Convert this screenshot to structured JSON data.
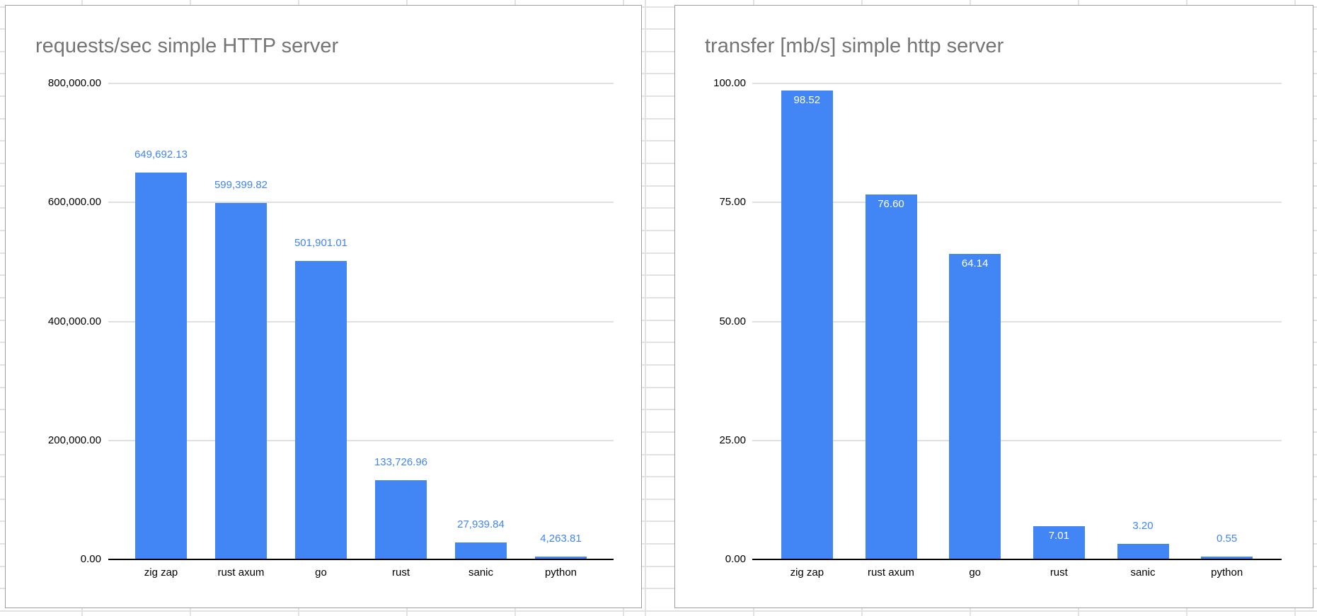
{
  "app": {
    "description": "spreadsheet with two embedded bar charts"
  },
  "colors": {
    "bar": "#4285f4",
    "data_label": "#4285f4",
    "data_label_inside": "#ffffff",
    "title": "#757575",
    "axis_text": "#000000",
    "chart_gridline": "#e0e0e0",
    "axis_baseline": "#000000",
    "chart_border": "#9e9e9e",
    "sheet_gridline": "#e2e2e2",
    "chart_background": "#ffffff"
  },
  "chart_data": [
    {
      "type": "bar",
      "title": "requests/sec simple HTTP server",
      "categories": [
        "zig zap",
        "rust axum",
        "go",
        "rust",
        "sanic",
        "python"
      ],
      "values": [
        649692.13,
        599399.82,
        501901.01,
        133726.96,
        27939.84,
        4263.81
      ],
      "value_labels": [
        "649,692.13",
        "599,399.82",
        "501,901.01",
        "133,726.96",
        "27,939.84",
        "4,263.81"
      ],
      "label_placement": [
        "above",
        "above",
        "above",
        "above",
        "above",
        "above"
      ],
      "ylim": [
        0,
        800000
      ],
      "y_ticks": [
        {
          "value": 800000,
          "label": "800,000.00"
        },
        {
          "value": 600000,
          "label": "600,000.00"
        },
        {
          "value": 400000,
          "label": "400,000.00"
        },
        {
          "value": 200000,
          "label": "200,000.00"
        },
        {
          "value": 0,
          "label": "0.00"
        }
      ],
      "xlabel": "",
      "ylabel": "",
      "grid": true,
      "legend": "none"
    },
    {
      "type": "bar",
      "title": "transfer [mb/s] simple http server",
      "categories": [
        "zig zap",
        "rust axum",
        "go",
        "rust",
        "sanic",
        "python"
      ],
      "values": [
        98.52,
        76.6,
        64.14,
        7.01,
        3.2,
        0.55
      ],
      "value_labels": [
        "98.52",
        "76.60",
        "64.14",
        "7.01",
        "3.20",
        "0.55"
      ],
      "label_placement": [
        "inside",
        "inside",
        "inside",
        "inside",
        "above",
        "above"
      ],
      "ylim": [
        0,
        100
      ],
      "y_ticks": [
        {
          "value": 100,
          "label": "100.00"
        },
        {
          "value": 75,
          "label": "75.00"
        },
        {
          "value": 50,
          "label": "50.00"
        },
        {
          "value": 25,
          "label": "25.00"
        },
        {
          "value": 0,
          "label": "0.00"
        }
      ],
      "xlabel": "",
      "ylabel": "",
      "grid": true,
      "legend": "none"
    }
  ]
}
